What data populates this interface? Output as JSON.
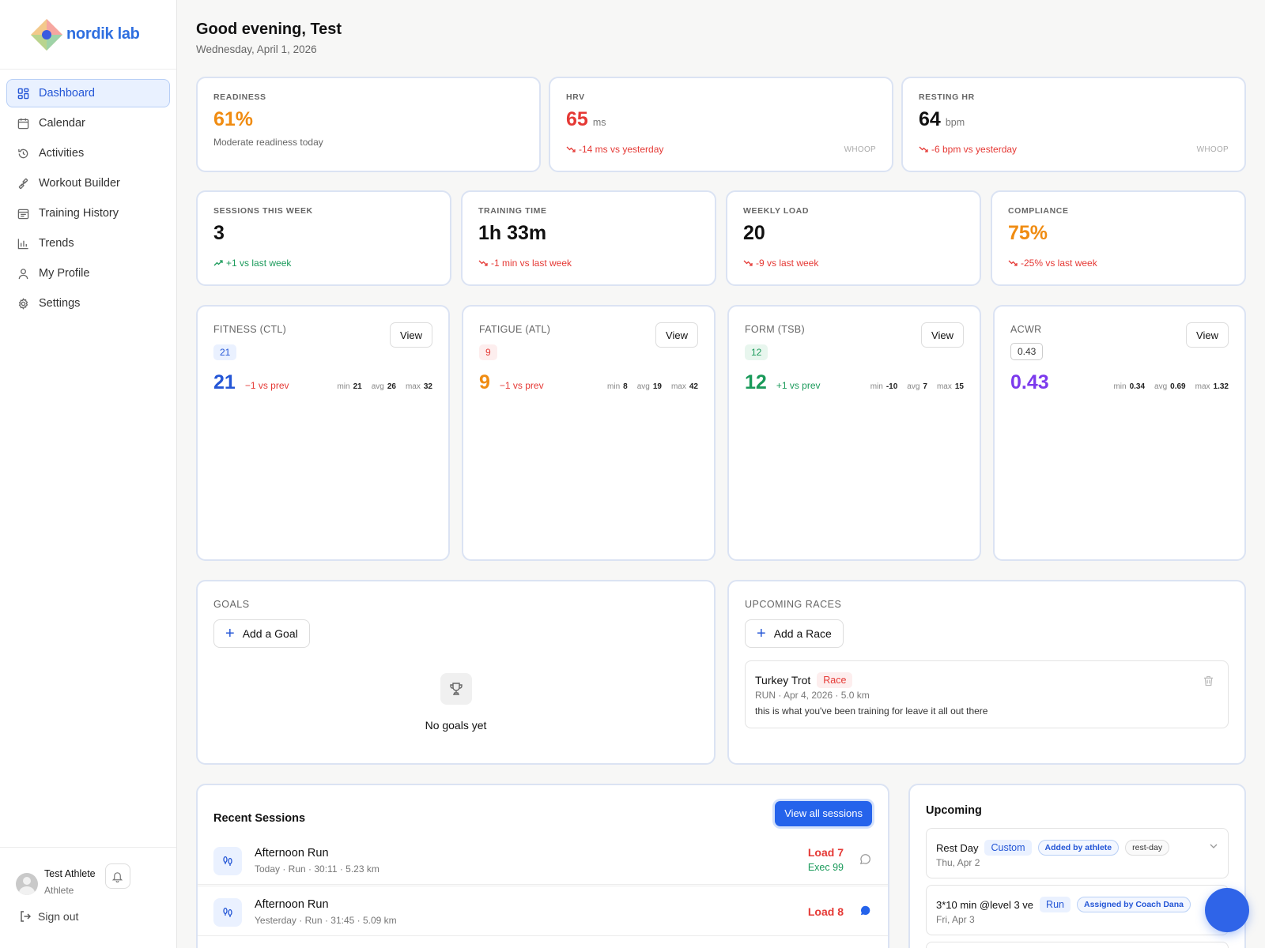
{
  "brand": {
    "name": "nordik lab"
  },
  "sidebar": {
    "items": [
      {
        "label": "Dashboard",
        "icon": "dashboard-icon"
      },
      {
        "label": "Calendar",
        "icon": "calendar-icon"
      },
      {
        "label": "Activities",
        "icon": "history-icon"
      },
      {
        "label": "Workout Builder",
        "icon": "dumbbell-icon"
      },
      {
        "label": "Training History",
        "icon": "calendar-list-icon"
      },
      {
        "label": "Trends",
        "icon": "bar-chart-icon"
      },
      {
        "label": "My Profile",
        "icon": "user-icon"
      },
      {
        "label": "Settings",
        "icon": "gear-icon"
      }
    ],
    "active_index": 0,
    "user": {
      "name": "Test Athlete",
      "role": "Athlete"
    },
    "signout": "Sign out"
  },
  "header": {
    "greeting": "Good evening, Test",
    "date": "Wednesday, April 1, 2026"
  },
  "vitals": {
    "readiness": {
      "label": "READINESS",
      "value": "61%",
      "note": "Moderate readiness today"
    },
    "hrv": {
      "label": "HRV",
      "value": "65",
      "unit": "ms",
      "delta": "-14 ms vs yesterday",
      "source": "WHOOP"
    },
    "rhr": {
      "label": "RESTING HR",
      "value": "64",
      "unit": "bpm",
      "delta": "-6 bpm vs yesterday",
      "source": "WHOOP"
    }
  },
  "weekly": {
    "sessions": {
      "label": "SESSIONS THIS WEEK",
      "value": "3",
      "delta": "+1 vs last week"
    },
    "time": {
      "label": "TRAINING TIME",
      "value": "1h 33m",
      "delta": "-1 min vs last week"
    },
    "load": {
      "label": "WEEKLY LOAD",
      "value": "20",
      "delta": "-9 vs last week"
    },
    "compliance": {
      "label": "COMPLIANCE",
      "value": "75%",
      "delta": "-25% vs last week"
    }
  },
  "metrics": {
    "view_label": "View",
    "min_label": "min",
    "avg_label": "avg",
    "max_label": "max",
    "ctl": {
      "title": "FITNESS (CTL)",
      "chip": "21",
      "value": "21",
      "delta": "−1 vs prev",
      "min": "21",
      "avg": "26",
      "max": "32"
    },
    "atl": {
      "title": "FATIGUE (ATL)",
      "chip": "9",
      "value": "9",
      "delta": "−1 vs prev",
      "min": "8",
      "avg": "19",
      "max": "42"
    },
    "tsb": {
      "title": "FORM (TSB)",
      "chip": "12",
      "value": "12",
      "delta": "+1 vs prev",
      "min": "-10",
      "avg": "7",
      "max": "15"
    },
    "acwr": {
      "title": "ACWR",
      "chip": "0.43",
      "value": "0.43",
      "min": "0.34",
      "avg": "0.69",
      "max": "1.32"
    }
  },
  "goals": {
    "title": "GOALS",
    "add": "Add a Goal",
    "empty": "No goals yet"
  },
  "races": {
    "title": "UPCOMING RACES",
    "add": "Add a Race",
    "item": {
      "name": "Turkey Trot",
      "badge": "Race",
      "meta": "RUN · Apr 4, 2026 · 5.0 km",
      "note": "this is what you've been training for leave it all out there"
    }
  },
  "recent": {
    "title": "Recent Sessions",
    "view_all": "View all sessions",
    "rows": [
      {
        "title": "Afternoon Run",
        "sub": "Today · Run · 30:11 · 5.23 km",
        "load": "Load 7",
        "exec": "Exec 99"
      },
      {
        "title": "Afternoon Run",
        "sub": "Yesterday · Run · 31:45 · 5.09 km",
        "load": "Load 8",
        "exec": ""
      }
    ]
  },
  "upcoming": {
    "title": "Upcoming",
    "items": [
      {
        "title": "Rest Day",
        "type": "Custom",
        "tag1": "Added by athlete",
        "tag2": "rest-day",
        "date": "Thu, Apr 2"
      },
      {
        "title": "3*10 min @level 3 ve",
        "type": "Run",
        "tag1": "Assigned by Coach Dana",
        "date": "Fri, Apr 3"
      }
    ]
  },
  "colors": {
    "accent": "#2456d6",
    "orange": "#f08c12",
    "red": "#e53935",
    "green": "#1a9a5a",
    "purple": "#7c3aed"
  }
}
